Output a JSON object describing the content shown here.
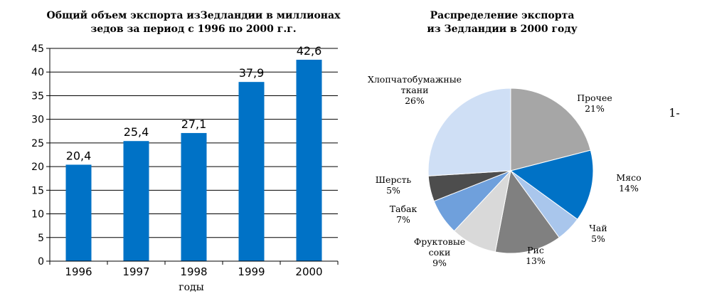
{
  "side_note": "1-",
  "chart_data": [
    {
      "type": "bar",
      "title": [
        "Общий объем экспорта изЗедландии в миллионах",
        "зедов за период с 1996 по 2000 г.г."
      ],
      "categories": [
        "1996",
        "1997",
        "1998",
        "1999",
        "2000"
      ],
      "values": [
        20.4,
        25.4,
        27.1,
        37.9,
        42.6
      ],
      "value_labels": [
        "20,4",
        "25,4",
        "27,1",
        "37,9",
        "42,6"
      ],
      "xlabel": "годы",
      "ylabel": "",
      "ylim": [
        0,
        45
      ],
      "yticks": [
        0,
        5,
        10,
        15,
        20,
        25,
        30,
        35,
        40,
        45
      ],
      "grid": true,
      "bar_color": "#0072c6"
    },
    {
      "type": "pie",
      "title": [
        "Распределение экспорта",
        "из Зедландии в 2000 году"
      ],
      "slices": [
        {
          "label": [
            "Прочее"
          ],
          "pct_label": "21%",
          "value": 21,
          "color": "#a6a6a6"
        },
        {
          "label": [
            "Мясо"
          ],
          "pct_label": "14%",
          "value": 14,
          "color": "#0072c6"
        },
        {
          "label": [
            "Чай"
          ],
          "pct_label": "5%",
          "value": 5,
          "color": "#a9c6ec"
        },
        {
          "label": [
            "Рис"
          ],
          "pct_label": "13%",
          "value": 13,
          "color": "#808080"
        },
        {
          "label": [
            "Фруктовые",
            "соки"
          ],
          "pct_label": "9%",
          "value": 9,
          "color": "#d9d9d9"
        },
        {
          "label": [
            "Табак"
          ],
          "pct_label": "7%",
          "value": 7,
          "color": "#6fa0dc"
        },
        {
          "label": [
            "Шерсть"
          ],
          "pct_label": "5%",
          "value": 5,
          "color": "#4d4d4d"
        },
        {
          "label": [
            "Хлопчатобумажные",
            "ткани"
          ],
          "pct_label": "26%",
          "value": 26,
          "color": "#cfdff5"
        }
      ]
    }
  ]
}
